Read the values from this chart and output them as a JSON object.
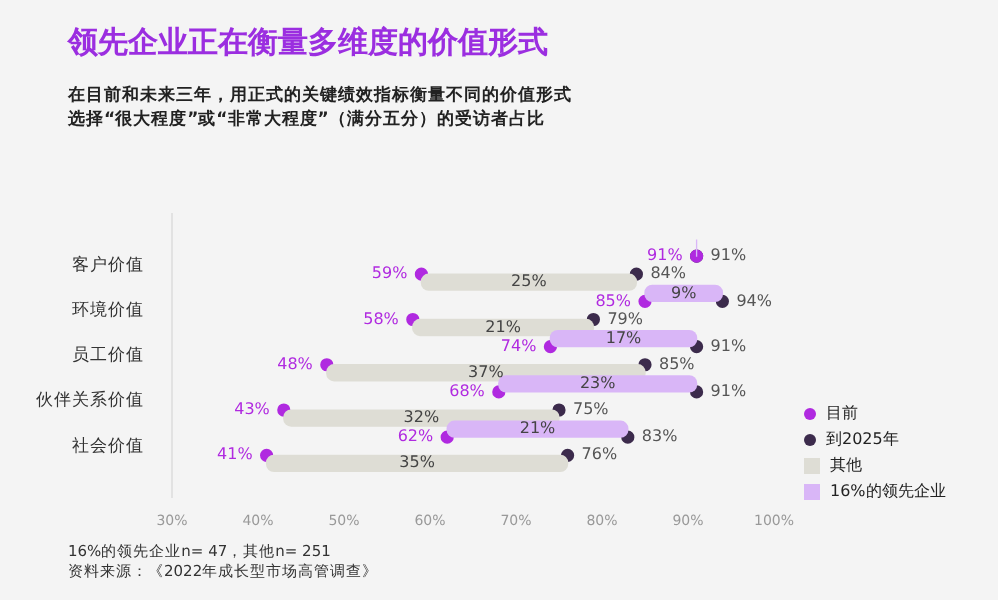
{
  "chart_data": {
    "type": "bar",
    "orientation": "horizontal",
    "title": "领先企业正在衡量多维度的价值形式",
    "subtitle": "在目前和未来三年，用正式的关键绩效指标衡量不同的价值形式选择“很大程度”或“非常大程度”（满分五分）的受访者占比",
    "categories": [
      "客户价值",
      "环境价值",
      "员工价值",
      "伙伴关系价值",
      "社会价值"
    ],
    "series": [
      {
        "name": "16%的领先企业",
        "type": "bar",
        "color": "#d9b6f7",
        "base": [
          91,
          85,
          74,
          68,
          62
        ],
        "values": [
          0,
          9,
          17,
          23,
          21
        ],
        "value_labels": [
          null,
          "9%",
          "17%",
          "23%",
          "21%"
        ]
      },
      {
        "name": "其他",
        "type": "bar",
        "color": "#deddd5",
        "base": [
          59,
          58,
          48,
          43,
          41
        ],
        "values": [
          25,
          21,
          37,
          32,
          35
        ],
        "value_labels": [
          "25%",
          "21%",
          "37%",
          "32%",
          "35%"
        ]
      },
      {
        "name": "目前",
        "type": "scatter",
        "color": "#b02ae0",
        "values": [
          91,
          85,
          74,
          68,
          62
        ],
        "value_labels": [
          "91%",
          "85%",
          "74%",
          "68%",
          "62%"
        ]
      },
      {
        "type": "scatter",
        "color": "#b02ae0",
        "values": [
          59,
          58,
          48,
          43,
          41
        ],
        "value_labels": [
          "59%",
          "58%",
          "48%",
          "43%",
          "41%"
        ]
      },
      {
        "name": "到2025年",
        "type": "scatter",
        "color": "#3c2b4c",
        "values": [
          91,
          94,
          91,
          91,
          83
        ],
        "value_labels": [
          "91%",
          "94%",
          "91%",
          "91%",
          "83%"
        ]
      },
      {
        "type": "scatter",
        "color": "#3c2b4c",
        "values": [
          84,
          79,
          85,
          75,
          76
        ],
        "value_labels": [
          "84%",
          "79%",
          "85%",
          "75%",
          "76%"
        ]
      }
    ],
    "xlim": [
      30,
      100
    ],
    "xticks": [
      {
        "value": 30,
        "label": "30%"
      },
      {
        "value": 40,
        "label": "40%"
      },
      {
        "value": 50,
        "label": "50%"
      },
      {
        "value": 60,
        "label": "60%"
      },
      {
        "value": 70,
        "label": "70%"
      },
      {
        "value": 80,
        "label": "80%"
      },
      {
        "value": 90,
        "label": "90%"
      },
      {
        "value": 100,
        "label": "100%"
      }
    ],
    "legend": "bottom right",
    "marker": "circle",
    "annotations": [
      "16%的领先企业n= 47，其他n= 251",
      "资料来源：《2022年成长型市场高管调查》"
    ]
  }
}
